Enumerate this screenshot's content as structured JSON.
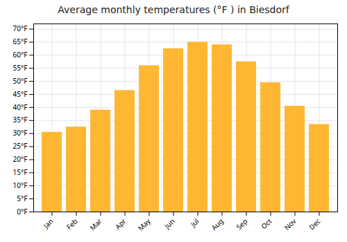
{
  "chart_data": {
    "type": "bar",
    "title": "Average monthly temperatures (°F ) in Biesdorf",
    "categories": [
      "Jan",
      "Feb",
      "Mar",
      "Apr",
      "May",
      "Jun",
      "Jul",
      "Aug",
      "Sep",
      "Oct",
      "Nov",
      "Dec"
    ],
    "values": [
      30.5,
      32.5,
      39.0,
      46.5,
      56.0,
      62.5,
      65.0,
      64.0,
      57.5,
      49.5,
      40.5,
      33.5
    ],
    "color": "#FFB733",
    "ylim": [
      0,
      72
    ],
    "yticks": [
      {
        "value": 0,
        "label": "0°F"
      },
      {
        "value": 5,
        "label": "5°F"
      },
      {
        "value": 10,
        "label": "10°F"
      },
      {
        "value": 15,
        "label": "15°F"
      },
      {
        "value": 20,
        "label": "20°F"
      },
      {
        "value": 25,
        "label": "25°F"
      },
      {
        "value": 30,
        "label": "30°F"
      },
      {
        "value": 35,
        "label": "35°F"
      },
      {
        "value": 40,
        "label": "40°F"
      },
      {
        "value": 45,
        "label": "45°F"
      },
      {
        "value": 50,
        "label": "50°F"
      },
      {
        "value": 55,
        "label": "55°F"
      },
      {
        "value": 60,
        "label": "60°F"
      },
      {
        "value": 65,
        "label": "65°F"
      },
      {
        "value": 70,
        "label": "70°F"
      }
    ],
    "grid": true
  }
}
